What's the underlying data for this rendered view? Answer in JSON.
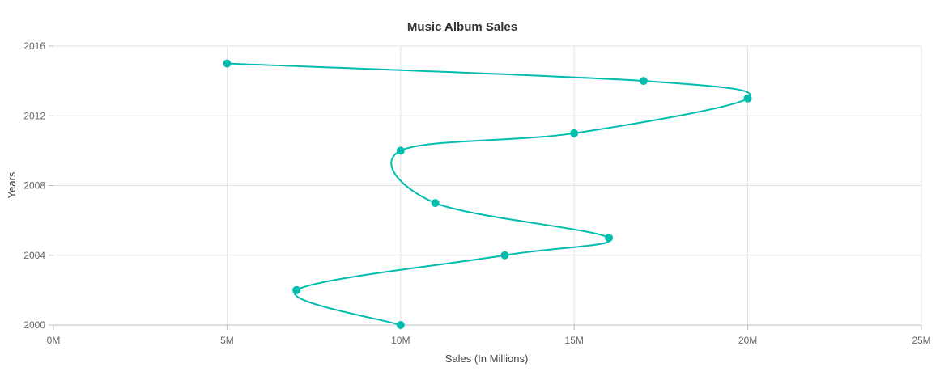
{
  "chart_data": {
    "type": "line",
    "title": "Music Album Sales",
    "xlabel": "Sales (In Millions)",
    "ylabel": "Years",
    "xlim": [
      0,
      25
    ],
    "ylim": [
      2000,
      2016
    ],
    "x_ticks": [
      0,
      5,
      10,
      15,
      20,
      25
    ],
    "x_tick_labels": [
      "0M",
      "5M",
      "10M",
      "15M",
      "20M",
      "25M"
    ],
    "y_ticks": [
      2000,
      2004,
      2008,
      2012,
      2016
    ],
    "y_tick_labels": [
      "2000",
      "2004",
      "2008",
      "2012",
      "2016"
    ],
    "grid": true,
    "legend": "none",
    "curve": "spline",
    "series": [
      {
        "color": "#00bdae",
        "points": [
          {
            "x": 10,
            "y": 2000
          },
          {
            "x": 7,
            "y": 2002
          },
          {
            "x": 13,
            "y": 2004
          },
          {
            "x": 16,
            "y": 2005
          },
          {
            "x": 11,
            "y": 2007
          },
          {
            "x": 10,
            "y": 2010
          },
          {
            "x": 15,
            "y": 2011
          },
          {
            "x": 20,
            "y": 2013
          },
          {
            "x": 17,
            "y": 2014
          },
          {
            "x": 5,
            "y": 2015
          }
        ]
      }
    ]
  }
}
